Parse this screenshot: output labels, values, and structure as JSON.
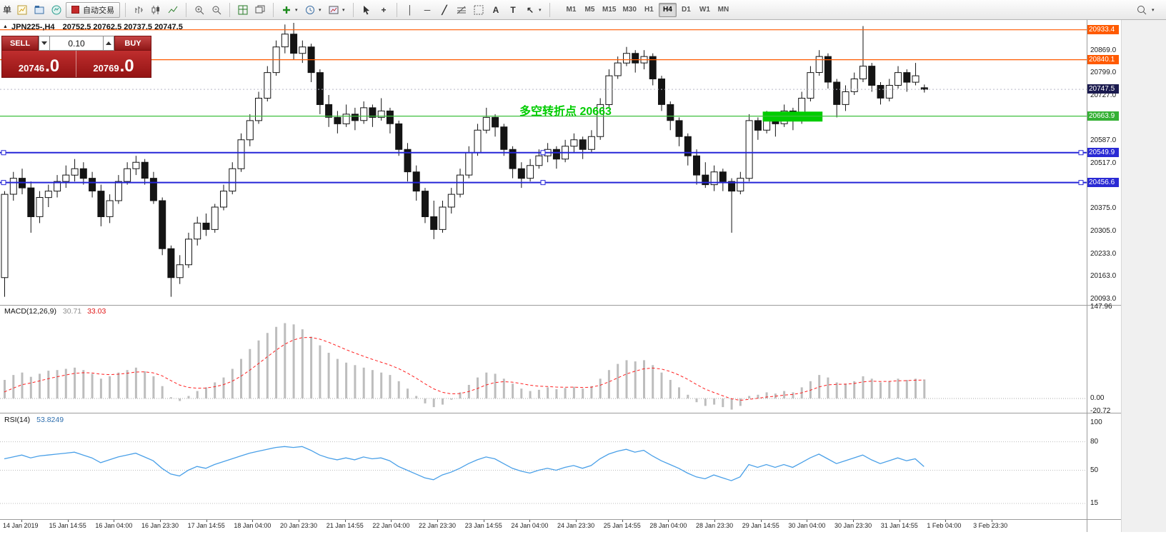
{
  "toolbar": {
    "order_fragment": "单",
    "auto_trading_label": "自动交易",
    "tool_glyphs": {
      "vertical_line": "│",
      "horizontal_line": "─",
      "trend_line": "╱",
      "crosshair": "+",
      "text": "A",
      "text_label": "T",
      "arrow": "↖"
    },
    "timeframes": [
      "M1",
      "M5",
      "M15",
      "M30",
      "H1",
      "H4",
      "D1",
      "W1",
      "MN"
    ],
    "active_timeframe": "H4"
  },
  "chart_header": {
    "symbol_period": "JPN225-,H4",
    "ohlc_text": "20752.5 20762.5 20737.5 20747.5"
  },
  "trade_panel": {
    "sell_label": "SELL",
    "buy_label": "BUY",
    "volume": "0.10",
    "sell_price_int": "20746",
    "sell_price_frac": ".0",
    "buy_price_int": "20769",
    "buy_price_frac": ".0"
  },
  "annotation": {
    "text": "多空转折点 20663",
    "color": "#00cc00"
  },
  "indicators": {
    "macd_label": "MACD(12,26,9)",
    "macd_value_main": "30.71",
    "macd_value_signal": "33.03",
    "rsi_label": "RSI(14)",
    "rsi_value": "53.8249"
  },
  "colors": {
    "hline_orange": "#ff5a00",
    "hline_green": "#3fbf3f",
    "hline_blue": "#2626d8",
    "tag_orange": "#ff5a00",
    "tag_green": "#34b134",
    "tag_blue": "#2a2ad4",
    "current_price_bg": "#1b1b4f",
    "macd_hist": "#bdbdbd",
    "macd_signal": "#ff2020",
    "rsi_line": "#4aa0e8",
    "candle_up": "#ffffff",
    "candle_down": "#141414",
    "green_box": "#00cc00"
  },
  "chart_data": [
    {
      "type": "candlestick",
      "symbol": "JPN225-",
      "timeframe": "H4",
      "current_bar": {
        "open": 20752.5,
        "high": 20762.5,
        "low": 20737.5,
        "close": 20747.5
      },
      "current_price": 20747.5,
      "y_axis_labels": [
        20869.0,
        20799.0,
        20727.0,
        20587.0,
        20517.0,
        20375.0,
        20305.0,
        20233.0,
        20163.0,
        20093.0
      ],
      "price_range_approx": [
        20075,
        20964
      ],
      "hlines": [
        {
          "price": 20933.4,
          "color": "orange",
          "selected": false
        },
        {
          "price": 20840.1,
          "color": "orange",
          "selected": false
        },
        {
          "price": 20663.9,
          "color": "green",
          "selected": false
        },
        {
          "price": 20549.9,
          "color": "blue",
          "selected": true
        },
        {
          "price": 20456.6,
          "color": "blue",
          "selected": true
        }
      ],
      "green_box": {
        "from_bar": 87,
        "to_bar": 93,
        "price_top": 20678,
        "price_bottom": 20647
      },
      "x_labels": [
        "14 Jan 2019",
        "15 Jan 14:55",
        "16 Jan 04:00",
        "16 Jan 23:30",
        "17 Jan 14:55",
        "18 Jan 04:00",
        "20 Jan 23:30",
        "21 Jan 14:55",
        "22 Jan 04:00",
        "22 Jan 23:30",
        "23 Jan 14:55",
        "24 Jan 04:00",
        "24 Jan 23:30",
        "25 Jan 14:55",
        "28 Jan 04:00",
        "28 Jan 23:30",
        "29 Jan 14:55",
        "30 Jan 04:00",
        "30 Jan 23:30",
        "31 Jan 14:55",
        "1 Feb 04:00",
        "3 Feb 23:30"
      ],
      "candles": [
        [
          20160,
          20430,
          20100,
          20420
        ],
        [
          20420,
          20490,
          20400,
          20470
        ],
        [
          20470,
          20500,
          20420,
          20440
        ],
        [
          20440,
          20460,
          20300,
          20350
        ],
        [
          20350,
          20430,
          20330,
          20410
        ],
        [
          20410,
          20450,
          20380,
          20430
        ],
        [
          20430,
          20480,
          20410,
          20460
        ],
        [
          20460,
          20510,
          20440,
          20480
        ],
        [
          20480,
          20530,
          20460,
          20500
        ],
        [
          20500,
          20520,
          20450,
          20470
        ],
        [
          20470,
          20490,
          20410,
          20430
        ],
        [
          20430,
          20450,
          20320,
          20350
        ],
        [
          20350,
          20420,
          20330,
          20400
        ],
        [
          20400,
          20480,
          20390,
          20460
        ],
        [
          20460,
          20520,
          20450,
          20500
        ],
        [
          20500,
          20540,
          20480,
          20520
        ],
        [
          20520,
          20530,
          20450,
          20470
        ],
        [
          20470,
          20490,
          20390,
          20400
        ],
        [
          20400,
          20410,
          20230,
          20250
        ],
        [
          20250,
          20260,
          20100,
          20160
        ],
        [
          20160,
          20230,
          20140,
          20200
        ],
        [
          20200,
          20300,
          20190,
          20280
        ],
        [
          20280,
          20350,
          20260,
          20330
        ],
        [
          20330,
          20360,
          20290,
          20310
        ],
        [
          20310,
          20390,
          20300,
          20380
        ],
        [
          20380,
          20450,
          20370,
          20430
        ],
        [
          20430,
          20520,
          20420,
          20500
        ],
        [
          20500,
          20610,
          20490,
          20590
        ],
        [
          20590,
          20670,
          20570,
          20650
        ],
        [
          20650,
          20740,
          20640,
          20720
        ],
        [
          20720,
          20820,
          20710,
          20800
        ],
        [
          20800,
          20900,
          20790,
          20880
        ],
        [
          20880,
          20950,
          20860,
          20920
        ],
        [
          20920,
          20955,
          20840,
          20860
        ],
        [
          20860,
          20900,
          20830,
          20880
        ],
        [
          20880,
          20890,
          20770,
          20800
        ],
        [
          20800,
          20810,
          20670,
          20700
        ],
        [
          20700,
          20730,
          20630,
          20660
        ],
        [
          20660,
          20680,
          20610,
          20640
        ],
        [
          20640,
          20700,
          20630,
          20670
        ],
        [
          20670,
          20690,
          20620,
          20650
        ],
        [
          20650,
          20710,
          20640,
          20690
        ],
        [
          20690,
          20700,
          20630,
          20660
        ],
        [
          20660,
          20720,
          20650,
          20680
        ],
        [
          20680,
          20690,
          20610,
          20640
        ],
        [
          20640,
          20650,
          20540,
          20560
        ],
        [
          20560,
          20580,
          20460,
          20490
        ],
        [
          20490,
          20510,
          20400,
          20430
        ],
        [
          20430,
          20440,
          20330,
          20350
        ],
        [
          20350,
          20400,
          20280,
          20310
        ],
        [
          20310,
          20400,
          20300,
          20380
        ],
        [
          20380,
          20440,
          20360,
          20420
        ],
        [
          20420,
          20500,
          20410,
          20480
        ],
        [
          20480,
          20570,
          20470,
          20550
        ],
        [
          20550,
          20640,
          20540,
          20620
        ],
        [
          20620,
          20690,
          20610,
          20660
        ],
        [
          20660,
          20670,
          20600,
          20630
        ],
        [
          20630,
          20640,
          20540,
          20560
        ],
        [
          20560,
          20570,
          20470,
          20500
        ],
        [
          20500,
          20520,
          20440,
          20470
        ],
        [
          20470,
          20530,
          20460,
          20510
        ],
        [
          20510,
          20560,
          20500,
          20540
        ],
        [
          20540,
          20580,
          20520,
          20560
        ],
        [
          20560,
          20570,
          20500,
          20530
        ],
        [
          20530,
          20590,
          20520,
          20570
        ],
        [
          20570,
          20610,
          20550,
          20590
        ],
        [
          20590,
          20600,
          20530,
          20560
        ],
        [
          20560,
          20620,
          20550,
          20600
        ],
        [
          20600,
          20720,
          20590,
          20700
        ],
        [
          20700,
          20810,
          20690,
          20790
        ],
        [
          20790,
          20850,
          20780,
          20830
        ],
        [
          20830,
          20880,
          20820,
          20860
        ],
        [
          20860,
          20870,
          20800,
          20830
        ],
        [
          20830,
          20870,
          20810,
          20850
        ],
        [
          20850,
          20860,
          20760,
          20780
        ],
        [
          20780,
          20790,
          20680,
          20700
        ],
        [
          20700,
          20710,
          20620,
          20650
        ],
        [
          20650,
          20660,
          20570,
          20600
        ],
        [
          20600,
          20610,
          20510,
          20540
        ],
        [
          20540,
          20560,
          20450,
          20480
        ],
        [
          20480,
          20520,
          20440,
          20450
        ],
        [
          20450,
          20510,
          20430,
          20490
        ],
        [
          20490,
          20500,
          20430,
          20460
        ],
        [
          20460,
          20470,
          20300,
          20430
        ],
        [
          20430,
          20490,
          20420,
          20470
        ],
        [
          20470,
          20670,
          20460,
          20650
        ],
        [
          20650,
          20660,
          20590,
          20620
        ],
        [
          20620,
          20680,
          20610,
          20660
        ],
        [
          20660,
          20670,
          20600,
          20640
        ],
        [
          20640,
          20700,
          20630,
          20680
        ],
        [
          20680,
          20690,
          20620,
          20650
        ],
        [
          20650,
          20740,
          20640,
          20720
        ],
        [
          20720,
          20820,
          20710,
          20800
        ],
        [
          20800,
          20870,
          20790,
          20850
        ],
        [
          20850,
          20860,
          20750,
          20770
        ],
        [
          20770,
          20780,
          20660,
          20700
        ],
        [
          20700,
          20760,
          20680,
          20740
        ],
        [
          20740,
          20800,
          20730,
          20780
        ],
        [
          20780,
          20945,
          20770,
          20820
        ],
        [
          20820,
          20830,
          20740,
          20760
        ],
        [
          20760,
          20770,
          20700,
          20720
        ],
        [
          20720,
          20780,
          20710,
          20760
        ],
        [
          20760,
          20820,
          20750,
          20800
        ],
        [
          20800,
          20810,
          20740,
          20770
        ],
        [
          20770,
          20830,
          20760,
          20790
        ],
        [
          20752.5,
          20762.5,
          20737.5,
          20747.5
        ]
      ]
    },
    {
      "type": "bar",
      "name": "MACD(12,26,9)",
      "current": {
        "macd": 30.71,
        "signal": 33.03
      },
      "axis_labels": [
        147.96,
        0.0,
        -20.72
      ],
      "signal_smoothing": 0.22,
      "values": [
        30,
        38,
        42,
        35,
        40,
        45,
        46,
        48,
        50,
        46,
        40,
        32,
        36,
        42,
        46,
        50,
        44,
        36,
        20,
        2,
        -4,
        4,
        12,
        18,
        26,
        34,
        48,
        64,
        80,
        94,
        106,
        116,
        122,
        120,
        112,
        100,
        86,
        74,
        64,
        58,
        54,
        50,
        46,
        42,
        38,
        28,
        16,
        4,
        -8,
        -14,
        -10,
        -2,
        10,
        22,
        34,
        42,
        40,
        32,
        24,
        16,
        12,
        14,
        18,
        15,
        17,
        19,
        16,
        20,
        32,
        46,
        56,
        62,
        60,
        62,
        54,
        42,
        30,
        18,
        6,
        -6,
        -12,
        -10,
        -14,
        -18,
        -12,
        4,
        6,
        10,
        8,
        12,
        10,
        18,
        28,
        38,
        34,
        26,
        24,
        28,
        36,
        32,
        26,
        28,
        32,
        30,
        32,
        30.71
      ]
    },
    {
      "type": "line",
      "name": "RSI(14)",
      "current": 53.8249,
      "range": [
        0,
        100
      ],
      "axis_labels": [
        100,
        80,
        50,
        15
      ],
      "levels": [
        80,
        50,
        15
      ],
      "values": [
        62,
        64,
        66,
        63,
        65,
        66,
        67,
        68,
        69,
        66,
        63,
        58,
        61,
        64,
        66,
        68,
        64,
        60,
        52,
        46,
        44,
        50,
        54,
        52,
        56,
        59,
        62,
        65,
        68,
        70,
        72,
        74,
        75,
        74,
        75,
        71,
        66,
        63,
        61,
        63,
        61,
        64,
        62,
        63,
        60,
        54,
        50,
        46,
        42,
        40,
        45,
        48,
        52,
        57,
        61,
        64,
        62,
        57,
        52,
        49,
        47,
        50,
        52,
        50,
        53,
        55,
        52,
        55,
        62,
        67,
        70,
        72,
        69,
        71,
        65,
        60,
        56,
        52,
        47,
        43,
        41,
        45,
        42,
        39,
        43,
        56,
        53,
        56,
        53,
        56,
        53,
        58,
        63,
        67,
        62,
        57,
        60,
        63,
        66,
        61,
        57,
        60,
        63,
        60,
        62,
        53.82
      ]
    }
  ]
}
